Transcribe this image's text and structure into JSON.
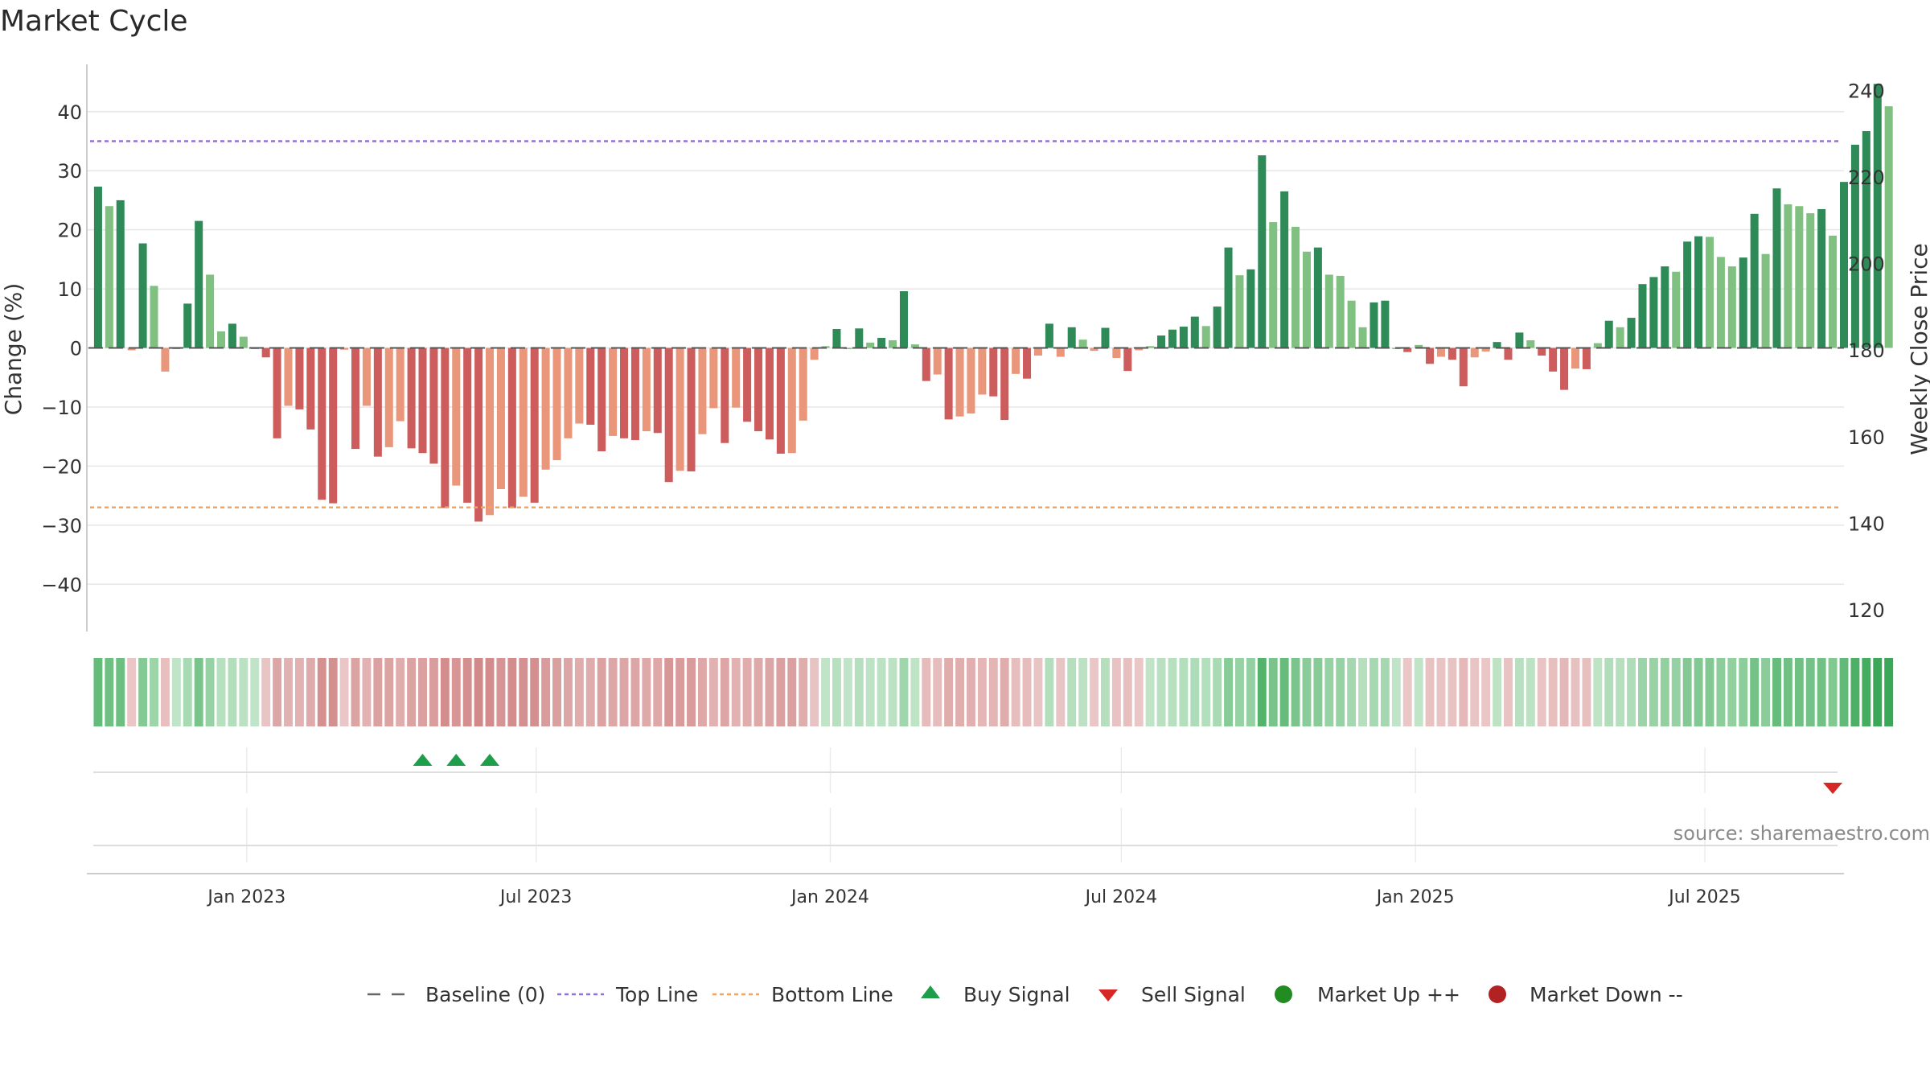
{
  "title": "Market Cycle",
  "source": "source: sharemaestro.com",
  "chart_data": {
    "type": "bar",
    "y_left_label": "Change (%)",
    "y_right_label": "Weekly Close Price",
    "y_left_ticks": [
      40,
      30,
      20,
      10,
      0,
      -10,
      -20,
      -30,
      -40
    ],
    "y_left_tick_labels": [
      "40",
      "30",
      "20",
      "10",
      "0",
      "−10",
      "−20",
      "−30",
      "−40"
    ],
    "y_right_ticks": [
      240,
      220,
      200,
      180,
      160,
      140,
      120
    ],
    "y_left_range": [
      -48,
      48
    ],
    "y_right_range": [
      115,
      246
    ],
    "x_range": [
      "2022-09-23",
      "2025-09-26"
    ],
    "x_ticks": [
      {
        "date": "2023-01-01",
        "label": "Jan 2023"
      },
      {
        "date": "2023-07-01",
        "label": "Jul 2023"
      },
      {
        "date": "2024-01-01",
        "label": "Jan 2024"
      },
      {
        "date": "2024-07-01",
        "label": "Jul 2024"
      },
      {
        "date": "2025-01-01",
        "label": "Jan 2025"
      },
      {
        "date": "2025-07-01",
        "label": "Jul 2025"
      }
    ],
    "first_week": "2022-09-30",
    "week_step_days": 7,
    "change_values": [
      27.3,
      24,
      25,
      -0.4,
      17.7,
      10.5,
      -4,
      0,
      7.5,
      21.5,
      12.4,
      2.8,
      4.1,
      1.9,
      0,
      -1.6,
      -15.3,
      -9.8,
      -10.4,
      -13.8,
      -25.7,
      -26.3,
      -0.3,
      -17.1,
      -9.8,
      -18.4,
      -16.8,
      -12.4,
      -17,
      -17.8,
      -19.6,
      -27.1,
      -23.3,
      -26.2,
      -29.4,
      -28.3,
      -23.9,
      -27.1,
      -25.2,
      -26.2,
      -20.6,
      -19,
      -15.3,
      -12.8,
      -13,
      -17.5,
      -14.9,
      -15.3,
      -15.6,
      -14.1,
      -14.4,
      -22.7,
      -20.8,
      -20.9,
      -14.6,
      -10.2,
      -16.1,
      -10.1,
      -12.5,
      -14.1,
      -15.5,
      -17.9,
      -17.8,
      -12.3,
      -2,
      0.3,
      3.2,
      0,
      3.3,
      0.9,
      1.7,
      1.3,
      9.6,
      0.6,
      -5.6,
      -4.5,
      -12.1,
      -11.6,
      -11.1,
      -7.9,
      -8.2,
      -12.2,
      -4.4,
      -5.2,
      -1.3,
      4.1,
      -1.5,
      3.5,
      1.4,
      -0.5,
      3.4,
      -1.7,
      -3.9,
      -0.4,
      0.3,
      2.1,
      3.1,
      3.6,
      5.3,
      3.7,
      7,
      17,
      12.3,
      13.3,
      32.6,
      21.3,
      26.5,
      20.5,
      16.3,
      17,
      12.4,
      12.2,
      8,
      3.5,
      7.7,
      8,
      0,
      -0.7,
      0.5,
      -2.7,
      -1.5,
      -2,
      -6.5,
      -1.6,
      -0.6,
      1,
      -2,
      2.6,
      1.3,
      -1.3,
      -4,
      -7.1,
      -3.5,
      -3.6,
      0.8,
      4.6,
      3.5,
      5.1,
      10.8,
      12,
      13.8,
      12.9,
      18,
      18.9,
      18.8,
      15.4,
      13.8,
      15.3,
      22.7,
      15.9,
      27,
      24.3,
      24,
      22.8,
      23.5,
      19,
      28.1,
      34.4,
      36.7,
      44.7,
      40.9
    ],
    "sell_signal_weeks": [
      [
        2025,
        9,
        19
      ]
    ],
    "buy_signal_weeks": [
      [
        2023,
        4,
        21
      ],
      [
        2023,
        5,
        12
      ],
      [
        2023,
        6,
        2
      ]
    ],
    "top_line": 35,
    "bottom_line": -27,
    "baseline": 0,
    "legend": [
      "Baseline (0)",
      "Top Line",
      "Bottom Line",
      "Buy Signal",
      "Sell Signal",
      "Market Up ++",
      "Market Down --"
    ],
    "colors": {
      "strong_up": "#2e8b57",
      "weak_up": "#80c080",
      "strong_down": "#cd5c5c",
      "weak_down": "#e9967a",
      "top_line": "#9370db",
      "bottom_line": "#f4a460",
      "buy": "#1e9e4a",
      "sell": "#d62728",
      "market_up": "#228b22",
      "market_down": "#b22222",
      "baseline": "#555555"
    }
  }
}
